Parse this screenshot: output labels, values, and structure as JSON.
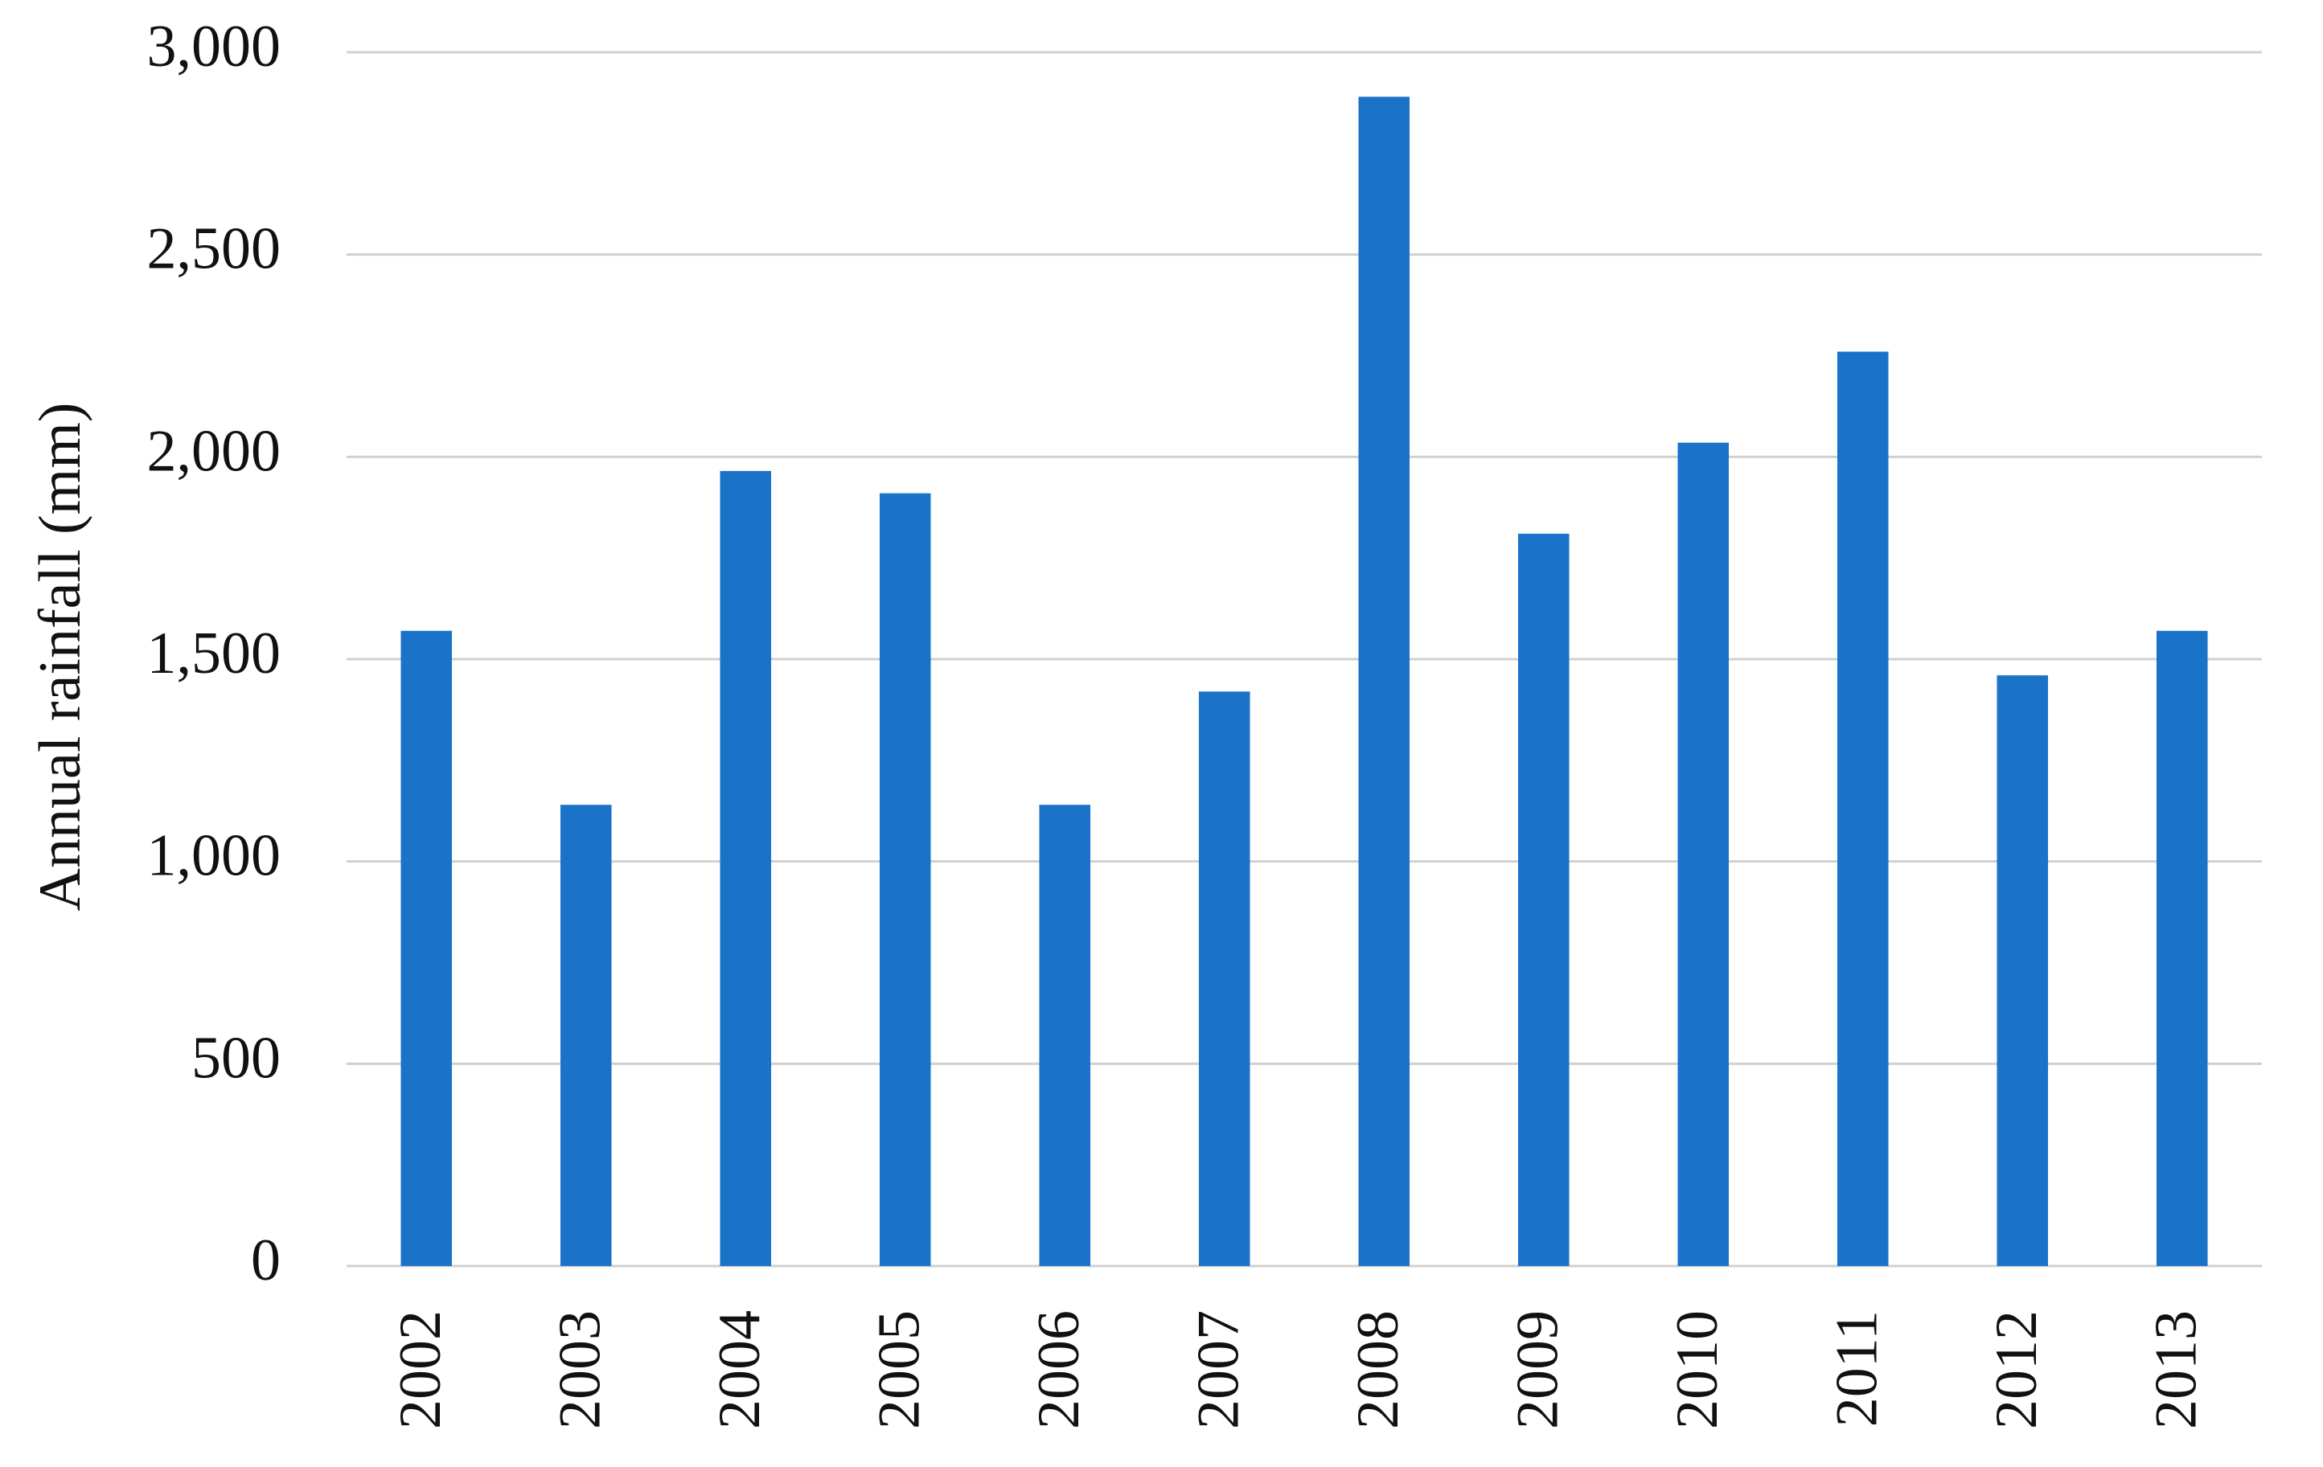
{
  "chart_data": {
    "type": "bar",
    "y_axis_label": "Annual rainfall (mm)",
    "categories": [
      "2002",
      "2003",
      "2004",
      "2005",
      "2006",
      "2007",
      "2008",
      "2009",
      "2010",
      "2011",
      "2012",
      "2013"
    ],
    "values": [
      1570,
      1140,
      1965,
      1910,
      1140,
      1420,
      2890,
      1810,
      2035,
      2260,
      1460,
      1570
    ],
    "color": "#1a73c8",
    "ylim": [
      0,
      3000
    ],
    "yticks": [
      0,
      500,
      {
        "value": 1000,
        "label": "1,000"
      },
      {
        "value": 1500,
        "label": "1,500"
      },
      {
        "value": 2000,
        "label": "2,000"
      },
      {
        "value": 2500,
        "label": "2,500"
      },
      {
        "value": 3000,
        "label": "3,000"
      }
    ],
    "grid": true
  }
}
